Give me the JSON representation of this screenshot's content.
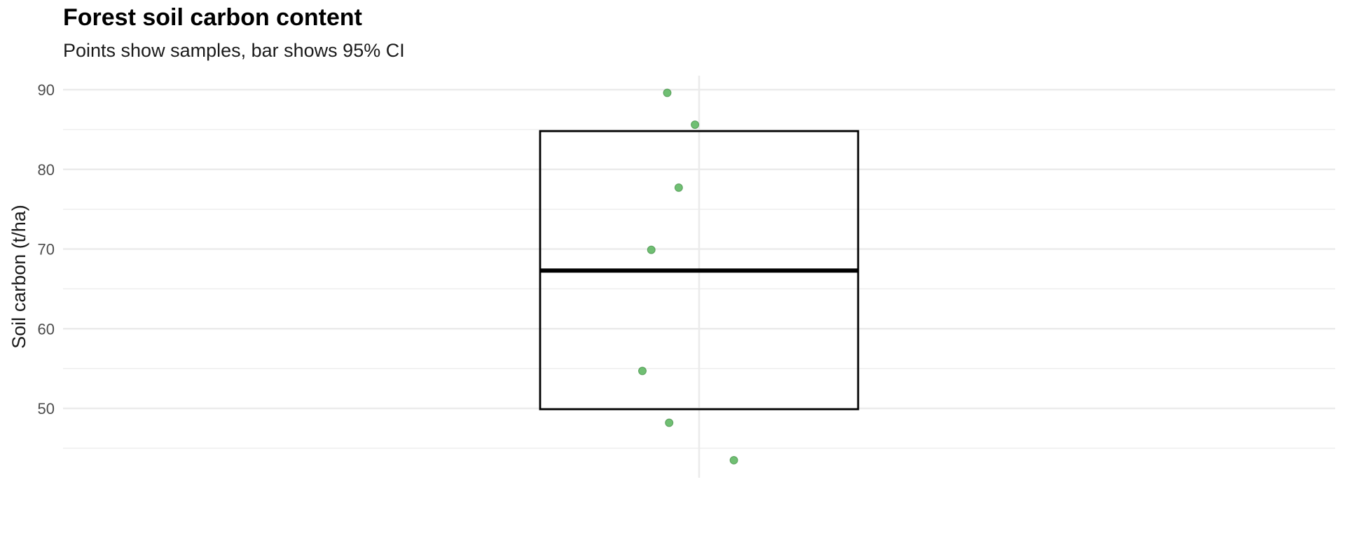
{
  "chart_data": {
    "type": "box",
    "title": "Forest soil carbon content",
    "subtitle": "Points show samples, bar shows 95% CI",
    "xlabel": "",
    "ylabel": "Soil carbon (t/ha)",
    "ylim": [
      41,
      92
    ],
    "y_ticks": [
      "50",
      "60",
      "70",
      "80",
      "90"
    ],
    "grid": true,
    "interval": {
      "lower": 49.9,
      "upper": 84.8,
      "center": 67.3
    },
    "points": {
      "jitter": [
        -0.1,
        -0.013,
        -0.064,
        -0.15,
        -0.178,
        -0.094,
        0.109
      ],
      "values": [
        89.6,
        85.6,
        77.7,
        69.9,
        54.7,
        48.2,
        43.5
      ]
    },
    "colors": {
      "points": "#4caf50",
      "box": "#000000",
      "grid": "#ebebeb"
    }
  }
}
